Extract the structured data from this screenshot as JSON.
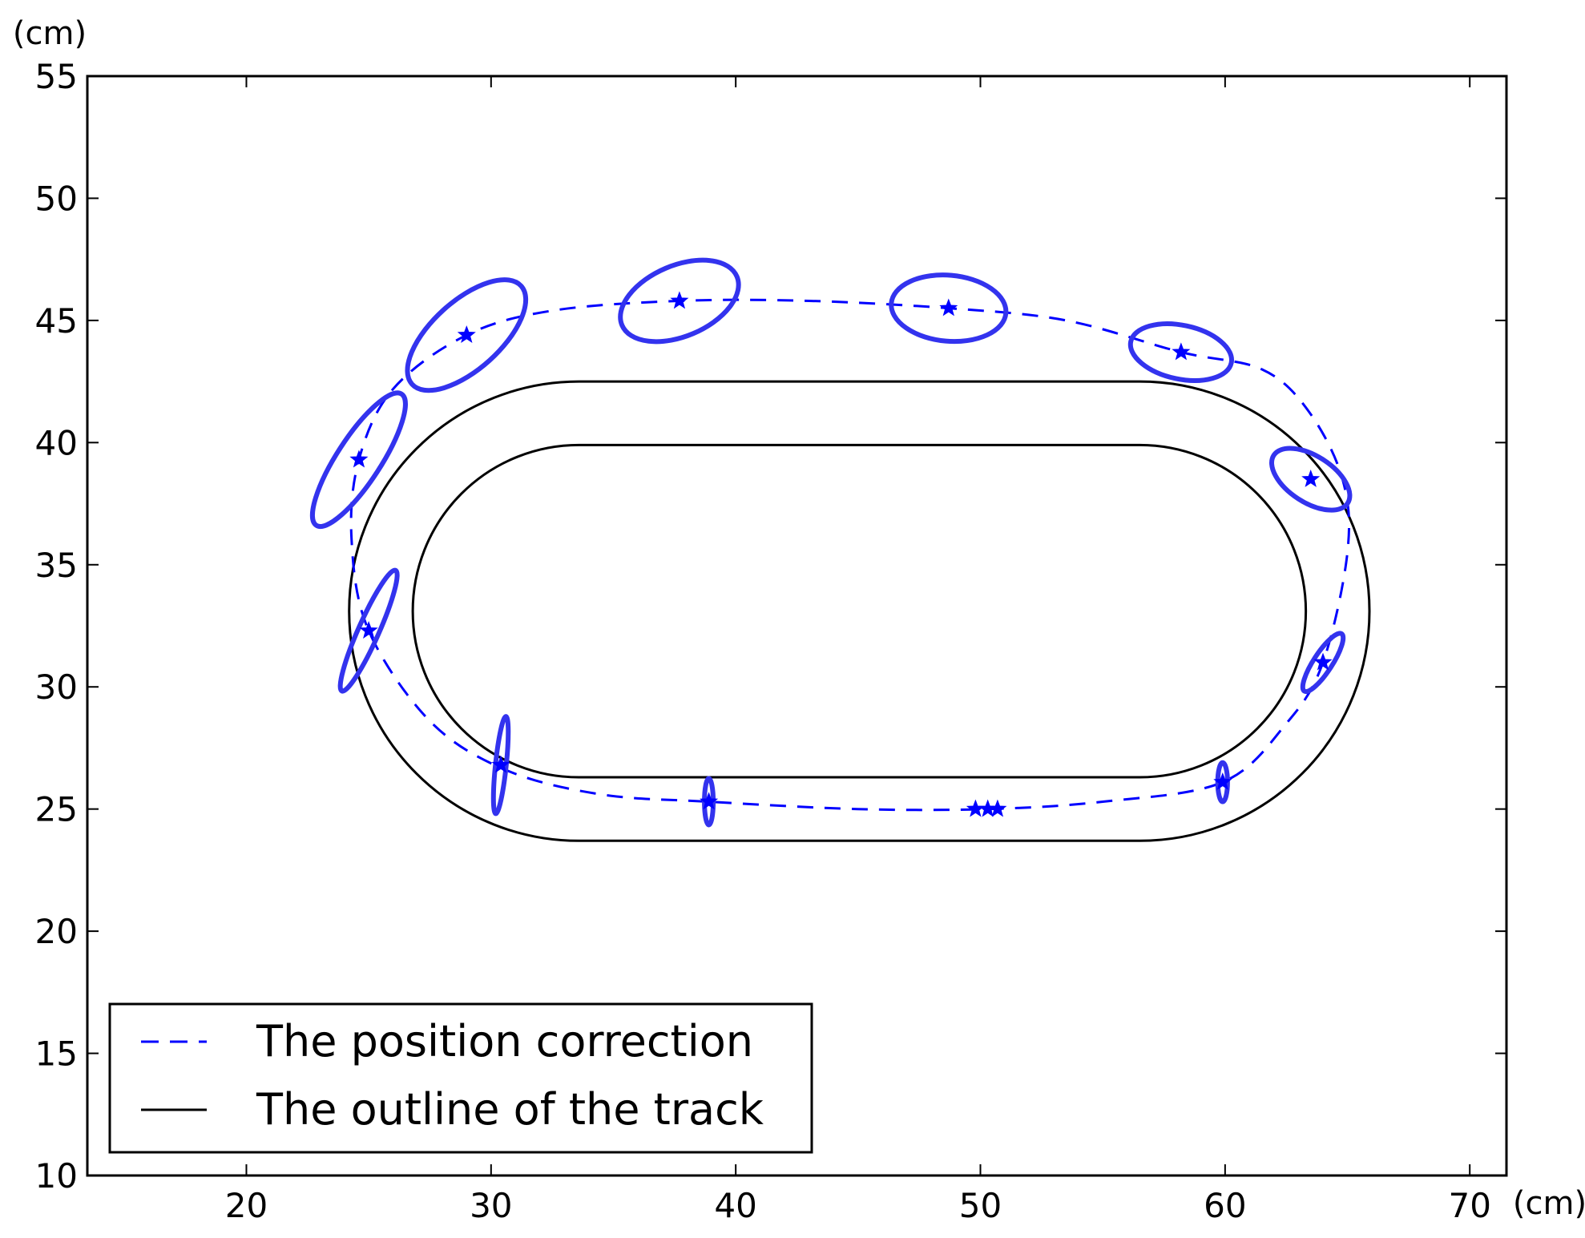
{
  "chart_data": {
    "type": "line",
    "title": "",
    "xlabel": "(cm)",
    "ylabel": "(cm)",
    "xlim": [
      13.5,
      71.5
    ],
    "ylim": [
      10,
      55
    ],
    "x_ticks": [
      20,
      30,
      40,
      50,
      60,
      70
    ],
    "y_ticks": [
      10,
      15,
      20,
      25,
      30,
      35,
      40,
      45,
      50,
      55
    ],
    "grid": false,
    "legend_position": "lower-left",
    "colors": {
      "correction": "#0000ff",
      "ellipse": "#3333ee",
      "track": "#000000"
    },
    "legend": [
      {
        "label": "The position correction",
        "style": "dashed",
        "color": "#0000ff"
      },
      {
        "label": "The outline of the track",
        "style": "solid",
        "color": "#000000"
      }
    ],
    "track": {
      "name": "The outline of the track",
      "outer": {
        "x_min": 24.2,
        "x_max": 65.9,
        "y_min": 23.7,
        "y_max": 42.5
      },
      "inner": {
        "x_min": 26.8,
        "x_max": 63.3,
        "y_min": 26.3,
        "y_max": 39.9
      }
    },
    "correction_path": {
      "name": "The position correction",
      "x": [
        50.3,
        55,
        59.9,
        62.5,
        64.0,
        65.0,
        64.8,
        63.4,
        61.5,
        58.2,
        53.5,
        48.7,
        43,
        37.7,
        32.5,
        29.0,
        26.0,
        24.6,
        24.3,
        25.0,
        27.5,
        30.6,
        34.5,
        38.9,
        45,
        50.3
      ],
      "y": [
        25.0,
        25.3,
        26.1,
        28.5,
        31.0,
        35.5,
        38.5,
        41.3,
        43.0,
        43.7,
        45.0,
        45.5,
        45.8,
        45.8,
        45.4,
        44.4,
        42.2,
        39.3,
        36.0,
        32.3,
        28.6,
        26.6,
        25.6,
        25.3,
        25.0,
        25.0
      ]
    },
    "markers": [
      {
        "x": 49.8,
        "y": 25.0,
        "rx": 0,
        "ry": 0,
        "angle": 0
      },
      {
        "x": 50.3,
        "y": 25.0,
        "rx": 0,
        "ry": 0,
        "angle": 0
      },
      {
        "x": 50.7,
        "y": 25.0,
        "rx": 0,
        "ry": 0,
        "angle": 0
      },
      {
        "x": 59.9,
        "y": 26.1,
        "rx": 0.2,
        "ry": 0.8,
        "angle": 0
      },
      {
        "x": 64.0,
        "y": 31.0,
        "rx": 0.38,
        "ry": 1.4,
        "angle": -33
      },
      {
        "x": 63.5,
        "y": 38.5,
        "rx": 1.8,
        "ry": 0.95,
        "angle": -33
      },
      {
        "x": 58.2,
        "y": 43.7,
        "rx": 2.1,
        "ry": 1.1,
        "angle": -12
      },
      {
        "x": 48.7,
        "y": 45.5,
        "rx": 2.35,
        "ry": 1.35,
        "angle": -5
      },
      {
        "x": 37.7,
        "y": 45.8,
        "rx": 2.55,
        "ry": 1.45,
        "angle": 23
      },
      {
        "x": 29.0,
        "y": 44.4,
        "rx": 3.0,
        "ry": 1.4,
        "angle": 42
      },
      {
        "x": 24.6,
        "y": 39.3,
        "rx": 3.2,
        "ry": 0.9,
        "angle": 57
      },
      {
        "x": 25.0,
        "y": 32.3,
        "rx": 2.7,
        "ry": 0.42,
        "angle": 66
      },
      {
        "x": 30.4,
        "y": 26.8,
        "rx": 0.22,
        "ry": 2.0,
        "angle": -6
      },
      {
        "x": 38.9,
        "y": 25.3,
        "rx": 0.18,
        "ry": 0.95,
        "angle": 0
      }
    ]
  }
}
